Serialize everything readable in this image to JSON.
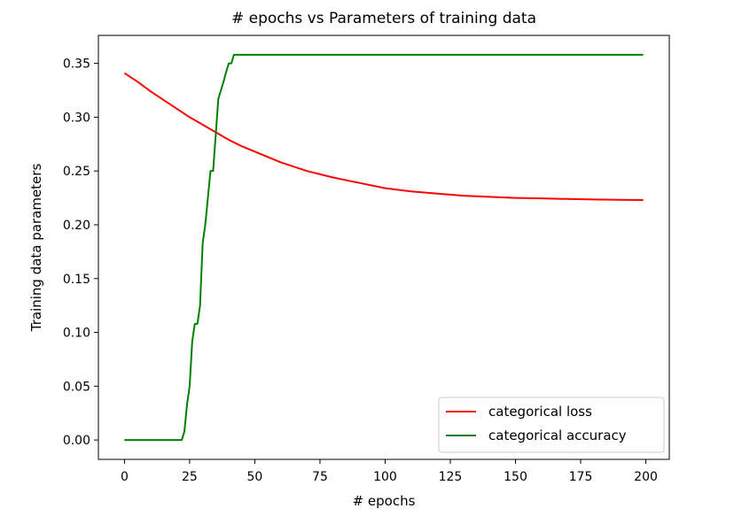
{
  "chart_data": {
    "type": "line",
    "title": "# epochs vs Parameters of training data",
    "xlabel": "# epochs",
    "ylabel": "Training data parameters",
    "xlim": [
      -10,
      209
    ],
    "ylim": [
      -0.018,
      0.376
    ],
    "xticks": [
      0,
      25,
      50,
      75,
      100,
      125,
      150,
      175,
      200
    ],
    "xtick_labels": [
      "0",
      "25",
      "50",
      "75",
      "100",
      "125",
      "150",
      "175",
      "200"
    ],
    "yticks": [
      0.0,
      0.05,
      0.1,
      0.15,
      0.2,
      0.25,
      0.3,
      0.35
    ],
    "ytick_labels": [
      "0.00",
      "0.05",
      "0.10",
      "0.15",
      "0.20",
      "0.25",
      "0.30",
      "0.35"
    ],
    "grid": false,
    "legend_position": "lower-right",
    "series": [
      {
        "name": "categorical loss",
        "color": "#ff0000",
        "x": [
          0,
          5,
          10,
          15,
          20,
          25,
          30,
          35,
          40,
          45,
          50,
          60,
          70,
          80,
          90,
          100,
          110,
          120,
          130,
          140,
          150,
          160,
          170,
          180,
          190,
          199
        ],
        "y": [
          0.341,
          0.333,
          0.324,
          0.316,
          0.308,
          0.3,
          0.293,
          0.286,
          0.279,
          0.273,
          0.268,
          0.258,
          0.25,
          0.244,
          0.239,
          0.234,
          0.231,
          0.229,
          0.227,
          0.226,
          0.225,
          0.2245,
          0.224,
          0.2235,
          0.2232,
          0.223
        ]
      },
      {
        "name": "categorical accuracy",
        "color": "#008000",
        "x": [
          0,
          22,
          23,
          24,
          25,
          26,
          27,
          28,
          29,
          30,
          31,
          32,
          33,
          34,
          35,
          36,
          37,
          38,
          39,
          40,
          41,
          42,
          43,
          199
        ],
        "y": [
          0.0,
          0.0,
          0.008,
          0.033,
          0.05,
          0.092,
          0.108,
          0.108,
          0.125,
          0.183,
          0.2,
          0.225,
          0.25,
          0.25,
          0.283,
          0.317,
          0.325,
          0.333,
          0.342,
          0.35,
          0.35,
          0.358,
          0.358,
          0.358
        ]
      }
    ]
  }
}
